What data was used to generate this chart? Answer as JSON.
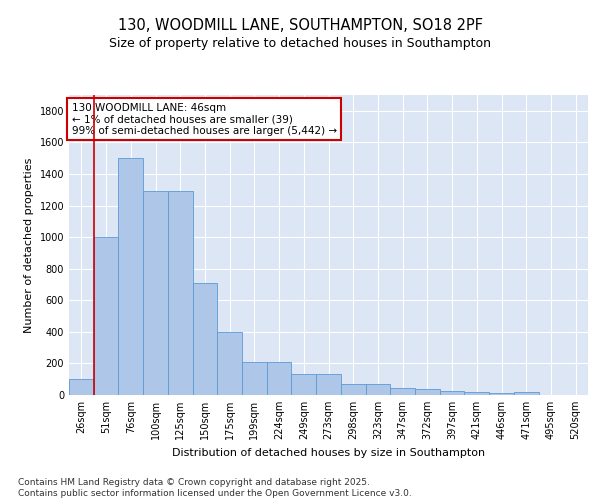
{
  "title_line1": "130, WOODMILL LANE, SOUTHAMPTON, SO18 2PF",
  "title_line2": "Size of property relative to detached houses in Southampton",
  "xlabel": "Distribution of detached houses by size in Southampton",
  "ylabel": "Number of detached properties",
  "categories": [
    "26sqm",
    "51sqm",
    "76sqm",
    "100sqm",
    "125sqm",
    "150sqm",
    "175sqm",
    "199sqm",
    "224sqm",
    "249sqm",
    "273sqm",
    "298sqm",
    "323sqm",
    "347sqm",
    "372sqm",
    "397sqm",
    "421sqm",
    "446sqm",
    "471sqm",
    "495sqm",
    "520sqm"
  ],
  "values": [
    100,
    1000,
    1500,
    1290,
    1290,
    710,
    400,
    210,
    210,
    130,
    130,
    70,
    70,
    42,
    35,
    27,
    20,
    15,
    20,
    0,
    0
  ],
  "bar_color": "#aec6e8",
  "bar_edge_color": "#5b9bd5",
  "annotation_box_text": "130 WOODMILL LANE: 46sqm\n← 1% of detached houses are smaller (39)\n99% of semi-detached houses are larger (5,442) →",
  "annotation_box_color": "#ffffff",
  "annotation_box_edge_color": "#cc0000",
  "vline_color": "#cc0000",
  "ylim": [
    0,
    1900
  ],
  "yticks": [
    0,
    200,
    400,
    600,
    800,
    1000,
    1200,
    1400,
    1600,
    1800
  ],
  "background_color": "#dce6f5",
  "grid_color": "#ffffff",
  "footer_text": "Contains HM Land Registry data © Crown copyright and database right 2025.\nContains public sector information licensed under the Open Government Licence v3.0.",
  "title_fontsize": 10.5,
  "subtitle_fontsize": 9,
  "annotation_fontsize": 7.5,
  "footer_fontsize": 6.5,
  "ylabel_fontsize": 8,
  "xlabel_fontsize": 8,
  "tick_fontsize": 7
}
